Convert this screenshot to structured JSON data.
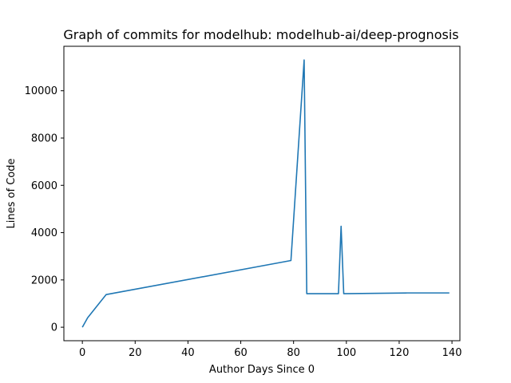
{
  "chart_data": {
    "type": "line",
    "title": "Graph of commits for modelhub: modelhub-ai/deep-prognosis",
    "xlabel": "Author Days Since 0",
    "ylabel": "Lines of Code",
    "xlim": [
      -7,
      143
    ],
    "ylim": [
      -570,
      11880
    ],
    "x_ticks": [
      0,
      20,
      40,
      60,
      80,
      100,
      120,
      140
    ],
    "y_ticks": [
      0,
      2000,
      4000,
      6000,
      8000,
      10000
    ],
    "grid": false,
    "series": [
      {
        "color": "#1f77b4",
        "x": [
          0,
          2,
          9,
          79,
          84,
          85,
          97,
          98,
          99,
          123,
          139
        ],
        "y": [
          0,
          400,
          1380,
          2820,
          11300,
          1420,
          1420,
          4270,
          1420,
          1450,
          1450
        ]
      }
    ]
  }
}
